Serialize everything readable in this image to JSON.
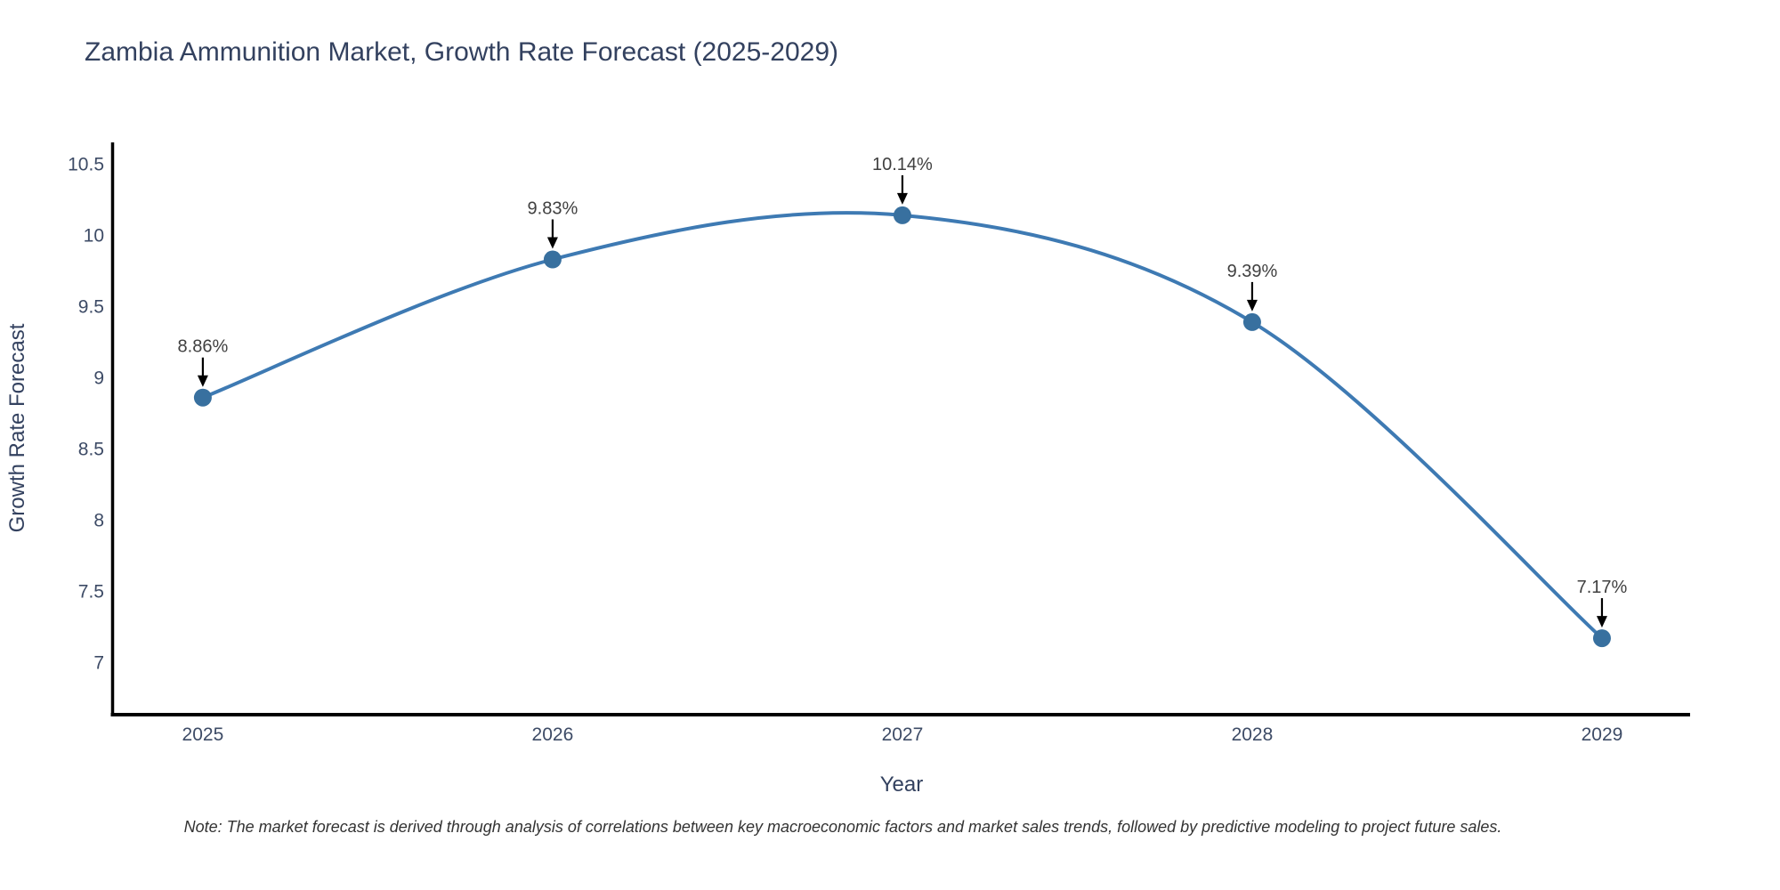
{
  "chart_data": {
    "type": "line",
    "title": "Zambia Ammunition Market, Growth Rate Forecast (2025-2029)",
    "xlabel": "Year",
    "ylabel": "Growth Rate Forecast",
    "x": [
      2025,
      2026,
      2027,
      2028,
      2029
    ],
    "values": [
      8.86,
      9.83,
      10.14,
      9.39,
      7.17
    ],
    "point_labels": [
      "8.86%",
      "9.83%",
      "10.14%",
      "9.39%",
      "7.17%"
    ],
    "x_tick_labels": [
      "2025",
      "2026",
      "2027",
      "2028",
      "2029"
    ],
    "y_ticks": [
      7,
      7.5,
      8,
      8.5,
      9,
      9.5,
      10,
      10.5
    ],
    "xlim": [
      2024.742,
      2029.252
    ],
    "ylim": [
      6.633,
      10.652
    ],
    "line_shape": "spline",
    "grid": false,
    "legend": "none",
    "colors": {
      "line": "#3e7ab3",
      "marker": "#38709f",
      "annotation_text": "#404040",
      "arrow": "#000000",
      "axis_line": "#000000",
      "chart_text": "#33415f"
    }
  },
  "note": "Note: The market forecast is derived through analysis of correlations between key macroeconomic factors and market sales trends, followed by predictive modeling to project future sales."
}
